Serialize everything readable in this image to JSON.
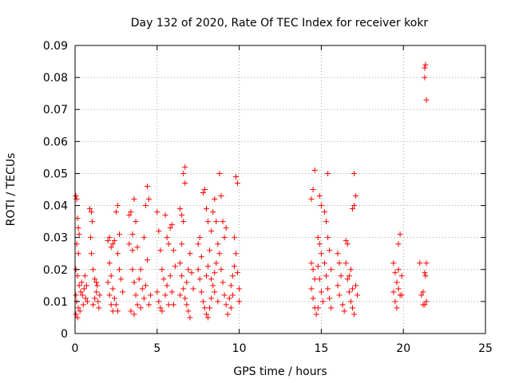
{
  "chart_data": {
    "type": "scatter",
    "title": "Day 132 of 2020, Rate Of TEC Index for receiver kokr",
    "xlabel": "GPS time / hours",
    "ylabel": "ROTI / TECUs",
    "xlim": [
      0,
      25
    ],
    "ylim": [
      0,
      0.09
    ],
    "x_ticks": [
      0,
      5,
      10,
      15,
      20,
      25
    ],
    "y_ticks": [
      0,
      0.01,
      0.02,
      0.03,
      0.04,
      0.05,
      0.06,
      0.07,
      0.08,
      0.09
    ],
    "x_tick_labels": [
      "0",
      "5",
      "10",
      "15",
      "20",
      "25"
    ],
    "y_tick_labels": [
      "0",
      "0.01",
      "0.02",
      "0.03",
      "0.04",
      "0.05",
      "0.06",
      "0.07",
      "0.08",
      "0.09"
    ],
    "grid": true,
    "marker": "plus",
    "color": "#ff0000",
    "series": [
      {
        "points": [
          [
            0.05,
            0.043
          ],
          [
            0.1,
            0.042
          ],
          [
            0.15,
            0.036
          ],
          [
            0.2,
            0.033
          ],
          [
            0.25,
            0.031
          ],
          [
            0.1,
            0.028
          ],
          [
            0.2,
            0.025
          ],
          [
            0.05,
            0.02
          ],
          [
            0.15,
            0.018
          ],
          [
            0.25,
            0.015
          ],
          [
            0.05,
            0.012
          ],
          [
            0.1,
            0.01
          ],
          [
            0.2,
            0.008
          ],
          [
            0.3,
            0.007
          ],
          [
            0.05,
            0.006
          ],
          [
            0.15,
            0.005
          ],
          [
            0.35,
            0.013
          ],
          [
            0.4,
            0.016
          ],
          [
            0.45,
            0.012
          ],
          [
            0.5,
            0.009
          ],
          [
            0.55,
            0.014
          ],
          [
            0.6,
            0.018
          ],
          [
            0.65,
            0.011
          ],
          [
            0.7,
            0.015
          ],
          [
            0.75,
            0.01
          ],
          [
            0.9,
            0.039
          ],
          [
            1.0,
            0.038
          ],
          [
            1.05,
            0.035
          ],
          [
            0.95,
            0.03
          ],
          [
            1.0,
            0.025
          ],
          [
            1.1,
            0.02
          ],
          [
            1.2,
            0.017
          ],
          [
            1.3,
            0.013
          ],
          [
            1.35,
            0.015
          ],
          [
            1.4,
            0.01
          ],
          [
            1.45,
            0.008
          ],
          [
            1.5,
            0.012
          ],
          [
            1.1,
            0.009
          ],
          [
            1.2,
            0.011
          ],
          [
            1.3,
            0.016
          ],
          [
            2.0,
            0.029
          ],
          [
            2.1,
            0.03
          ],
          [
            2.2,
            0.027
          ],
          [
            2.3,
            0.028
          ],
          [
            2.4,
            0.029
          ],
          [
            2.1,
            0.022
          ],
          [
            2.2,
            0.018
          ],
          [
            2.3,
            0.014
          ],
          [
            2.4,
            0.011
          ],
          [
            2.5,
            0.009
          ],
          [
            2.6,
            0.007
          ],
          [
            2.0,
            0.016
          ],
          [
            2.1,
            0.012
          ],
          [
            2.2,
            0.009
          ],
          [
            2.3,
            0.007
          ],
          [
            2.5,
            0.038
          ],
          [
            2.6,
            0.04
          ],
          [
            2.7,
            0.031
          ],
          [
            2.6,
            0.025
          ],
          [
            2.7,
            0.02
          ],
          [
            2.8,
            0.017
          ],
          [
            2.9,
            0.013
          ],
          [
            3.3,
            0.037
          ],
          [
            3.4,
            0.038
          ],
          [
            3.5,
            0.031
          ],
          [
            3.3,
            0.028
          ],
          [
            3.5,
            0.026
          ],
          [
            3.6,
            0.042
          ],
          [
            3.7,
            0.035
          ],
          [
            3.8,
            0.027
          ],
          [
            3.5,
            0.02
          ],
          [
            3.6,
            0.016
          ],
          [
            3.7,
            0.012
          ],
          [
            3.8,
            0.009
          ],
          [
            3.4,
            0.007
          ],
          [
            3.6,
            0.006
          ],
          [
            3.9,
            0.017
          ],
          [
            4.0,
            0.02
          ],
          [
            4.1,
            0.014
          ],
          [
            4.2,
            0.011
          ],
          [
            4.3,
            0.015
          ],
          [
            4.3,
            0.04
          ],
          [
            4.4,
            0.046
          ],
          [
            4.5,
            0.042
          ],
          [
            4.2,
            0.03
          ],
          [
            4.4,
            0.023
          ],
          [
            4.5,
            0.009
          ],
          [
            4.6,
            0.012
          ],
          [
            4.0,
            0.008
          ],
          [
            5.0,
            0.038
          ],
          [
            5.1,
            0.032
          ],
          [
            5.2,
            0.026
          ],
          [
            5.3,
            0.02
          ],
          [
            5.4,
            0.017
          ],
          [
            5.5,
            0.037
          ],
          [
            5.6,
            0.03
          ],
          [
            5.7,
            0.028
          ],
          [
            5.0,
            0.013
          ],
          [
            5.1,
            0.01
          ],
          [
            5.2,
            0.008
          ],
          [
            5.3,
            0.007
          ],
          [
            5.5,
            0.012
          ],
          [
            5.6,
            0.015
          ],
          [
            5.7,
            0.009
          ],
          [
            5.8,
            0.018
          ],
          [
            5.9,
            0.013
          ],
          [
            6.0,
            0.009
          ],
          [
            5.8,
            0.033
          ],
          [
            5.9,
            0.034
          ],
          [
            6.0,
            0.026
          ],
          [
            6.1,
            0.021
          ],
          [
            6.4,
            0.039
          ],
          [
            6.5,
            0.037
          ],
          [
            6.6,
            0.05
          ],
          [
            6.7,
            0.052
          ],
          [
            6.7,
            0.047
          ],
          [
            6.6,
            0.035
          ],
          [
            6.5,
            0.028
          ],
          [
            6.4,
            0.022
          ],
          [
            6.5,
            0.018
          ],
          [
            6.6,
            0.014
          ],
          [
            6.7,
            0.011
          ],
          [
            6.8,
            0.009
          ],
          [
            6.9,
            0.007
          ],
          [
            7.0,
            0.005
          ],
          [
            6.4,
            0.012
          ],
          [
            6.8,
            0.016
          ],
          [
            6.9,
            0.02
          ],
          [
            7.0,
            0.025
          ],
          [
            7.1,
            0.019
          ],
          [
            7.2,
            0.014
          ],
          [
            7.5,
            0.028
          ],
          [
            7.6,
            0.03
          ],
          [
            7.7,
            0.024
          ],
          [
            7.8,
            0.044
          ],
          [
            7.9,
            0.045
          ],
          [
            8.0,
            0.039
          ],
          [
            8.1,
            0.035
          ],
          [
            7.5,
            0.02
          ],
          [
            7.6,
            0.017
          ],
          [
            7.7,
            0.013
          ],
          [
            7.8,
            0.01
          ],
          [
            7.9,
            0.008
          ],
          [
            8.0,
            0.006
          ],
          [
            8.1,
            0.005
          ],
          [
            8.2,
            0.008
          ],
          [
            8.3,
            0.011
          ],
          [
            8.4,
            0.015
          ],
          [
            8.5,
            0.019
          ],
          [
            8.6,
            0.022
          ],
          [
            8.2,
            0.026
          ],
          [
            8.3,
            0.032
          ],
          [
            8.4,
            0.038
          ],
          [
            8.5,
            0.042
          ],
          [
            8.6,
            0.035
          ],
          [
            8.7,
            0.028
          ],
          [
            8.0,
            0.018
          ],
          [
            8.1,
            0.021
          ],
          [
            8.3,
            0.017
          ],
          [
            8.5,
            0.013
          ],
          [
            8.7,
            0.01
          ],
          [
            8.8,
            0.05
          ],
          [
            8.9,
            0.043
          ],
          [
            9.0,
            0.035
          ],
          [
            9.1,
            0.03
          ],
          [
            9.2,
            0.033
          ],
          [
            8.8,
            0.025
          ],
          [
            8.9,
            0.02
          ],
          [
            9.0,
            0.016
          ],
          [
            9.1,
            0.012
          ],
          [
            9.2,
            0.009
          ],
          [
            9.3,
            0.006
          ],
          [
            9.4,
            0.011
          ],
          [
            9.5,
            0.015
          ],
          [
            9.6,
            0.018
          ],
          [
            9.7,
            0.021
          ],
          [
            9.8,
            0.025
          ],
          [
            9.9,
            0.019
          ],
          [
            10.0,
            0.014
          ],
          [
            9.8,
            0.049
          ],
          [
            9.9,
            0.047
          ],
          [
            9.7,
            0.03
          ],
          [
            9.6,
            0.012
          ],
          [
            9.5,
            0.008
          ],
          [
            10.0,
            0.01
          ],
          [
            14.4,
            0.022
          ],
          [
            14.5,
            0.02
          ],
          [
            14.6,
            0.017
          ],
          [
            14.4,
            0.014
          ],
          [
            14.5,
            0.011
          ],
          [
            14.6,
            0.008
          ],
          [
            14.7,
            0.006
          ],
          [
            14.5,
            0.045
          ],
          [
            14.4,
            0.042
          ],
          [
            14.6,
            0.051
          ],
          [
            14.8,
            0.03
          ],
          [
            14.9,
            0.028
          ],
          [
            15.0,
            0.025
          ],
          [
            14.8,
            0.021
          ],
          [
            14.9,
            0.017
          ],
          [
            15.0,
            0.013
          ],
          [
            15.1,
            0.01
          ],
          [
            14.8,
            0.008
          ],
          [
            15.0,
            0.04
          ],
          [
            14.9,
            0.043
          ],
          [
            15.2,
            0.038
          ],
          [
            15.3,
            0.035
          ],
          [
            15.4,
            0.03
          ],
          [
            15.5,
            0.026
          ],
          [
            15.2,
            0.022
          ],
          [
            15.3,
            0.018
          ],
          [
            15.4,
            0.014
          ],
          [
            15.5,
            0.011
          ],
          [
            15.6,
            0.008
          ],
          [
            15.4,
            0.05
          ],
          [
            15.6,
            0.02
          ],
          [
            16.0,
            0.025
          ],
          [
            16.1,
            0.022
          ],
          [
            16.2,
            0.018
          ],
          [
            16.0,
            0.015
          ],
          [
            16.1,
            0.012
          ],
          [
            16.3,
            0.009
          ],
          [
            16.4,
            0.007
          ],
          [
            16.5,
            0.029
          ],
          [
            16.6,
            0.028
          ],
          [
            16.5,
            0.022
          ],
          [
            16.6,
            0.017
          ],
          [
            16.7,
            0.013
          ],
          [
            16.8,
            0.01
          ],
          [
            16.9,
            0.008
          ],
          [
            17.0,
            0.006
          ],
          [
            16.9,
            0.039
          ],
          [
            17.0,
            0.04
          ],
          [
            17.1,
            0.043
          ],
          [
            17.0,
            0.05
          ],
          [
            16.8,
            0.02
          ],
          [
            17.1,
            0.015
          ],
          [
            17.2,
            0.012
          ],
          [
            16.7,
            0.018
          ],
          [
            16.9,
            0.014
          ],
          [
            19.4,
            0.022
          ],
          [
            19.5,
            0.019
          ],
          [
            19.6,
            0.016
          ],
          [
            19.7,
            0.014
          ],
          [
            19.8,
            0.012
          ],
          [
            19.5,
            0.01
          ],
          [
            19.6,
            0.008
          ],
          [
            19.7,
            0.028
          ],
          [
            19.8,
            0.031
          ],
          [
            19.9,
            0.018
          ],
          [
            19.9,
            0.012
          ],
          [
            19.4,
            0.013
          ],
          [
            19.7,
            0.02
          ],
          [
            21.0,
            0.022
          ],
          [
            21.1,
            0.012
          ],
          [
            21.2,
            0.009
          ],
          [
            21.3,
            0.08
          ],
          [
            21.35,
            0.084
          ],
          [
            21.3,
            0.083
          ],
          [
            21.4,
            0.073
          ],
          [
            21.3,
            0.019
          ],
          [
            21.35,
            0.018
          ],
          [
            21.4,
            0.022
          ],
          [
            21.3,
            0.009
          ],
          [
            21.4,
            0.01
          ],
          [
            21.2,
            0.013
          ]
        ]
      }
    ]
  }
}
